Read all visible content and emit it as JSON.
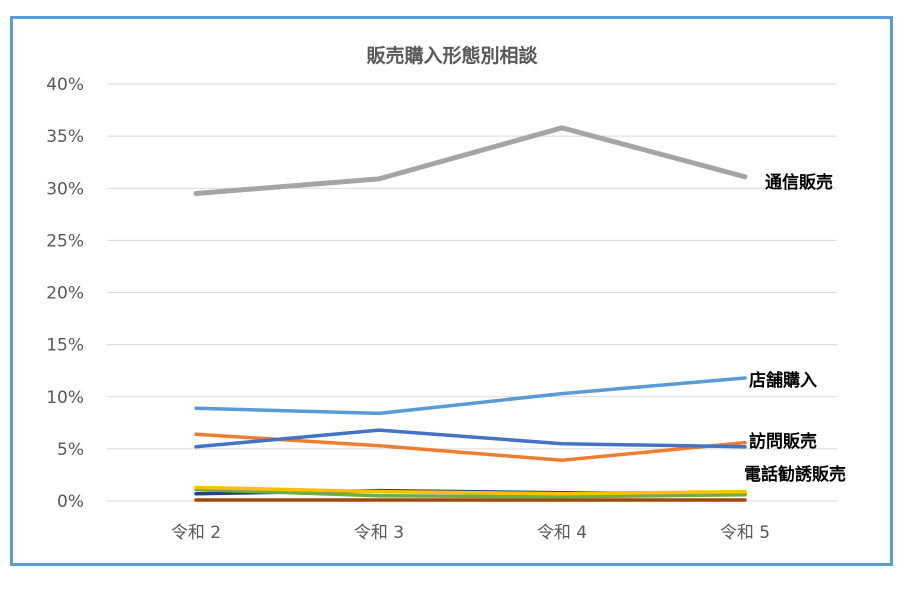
{
  "chart_data": {
    "type": "line",
    "title": "販売購入形態別相談",
    "xlabel": "",
    "ylabel": "",
    "categories": [
      "令和 2",
      "令和 3",
      "令和 4",
      "令和 5"
    ],
    "ylim": [
      0,
      40
    ],
    "yticks": [
      "0%",
      "5%",
      "10%",
      "15%",
      "20%",
      "25%",
      "30%",
      "35%",
      "40%"
    ],
    "grid": true,
    "series": [
      {
        "name": "通信販売",
        "color": "#a5a5a5",
        "width": 5,
        "values": [
          29.5,
          30.9,
          35.8,
          31.1
        ]
      },
      {
        "name": "店舗購入",
        "color": "#5b9bd5",
        "width": 3.5,
        "values": [
          8.9,
          8.4,
          10.3,
          11.8
        ]
      },
      {
        "name": "訪問販売",
        "color": "#4472c4",
        "width": 3.5,
        "values": [
          5.2,
          6.8,
          5.5,
          5.2
        ]
      },
      {
        "name": "",
        "color": "#ed7d31",
        "width": 3.5,
        "values": [
          6.4,
          5.3,
          3.9,
          5.6
        ]
      },
      {
        "name": "",
        "color": "#ffc000",
        "width": 3.5,
        "values": [
          1.3,
          0.9,
          0.7,
          0.9
        ]
      },
      {
        "name": "",
        "color": "#70ad47",
        "width": 3.5,
        "values": [
          1.1,
          0.5,
          0.4,
          0.6
        ]
      },
      {
        "name": "",
        "color": "#264478",
        "width": 3.5,
        "values": [
          0.7,
          1.0,
          0.8,
          0.7
        ]
      },
      {
        "name": "",
        "color": "#9e480e",
        "width": 3.5,
        "values": [
          0.1,
          0.1,
          0.1,
          0.1
        ]
      }
    ],
    "annotations": [
      "通信販売",
      "店舗購入",
      "訪問販売",
      "電話勧誘販売"
    ]
  }
}
